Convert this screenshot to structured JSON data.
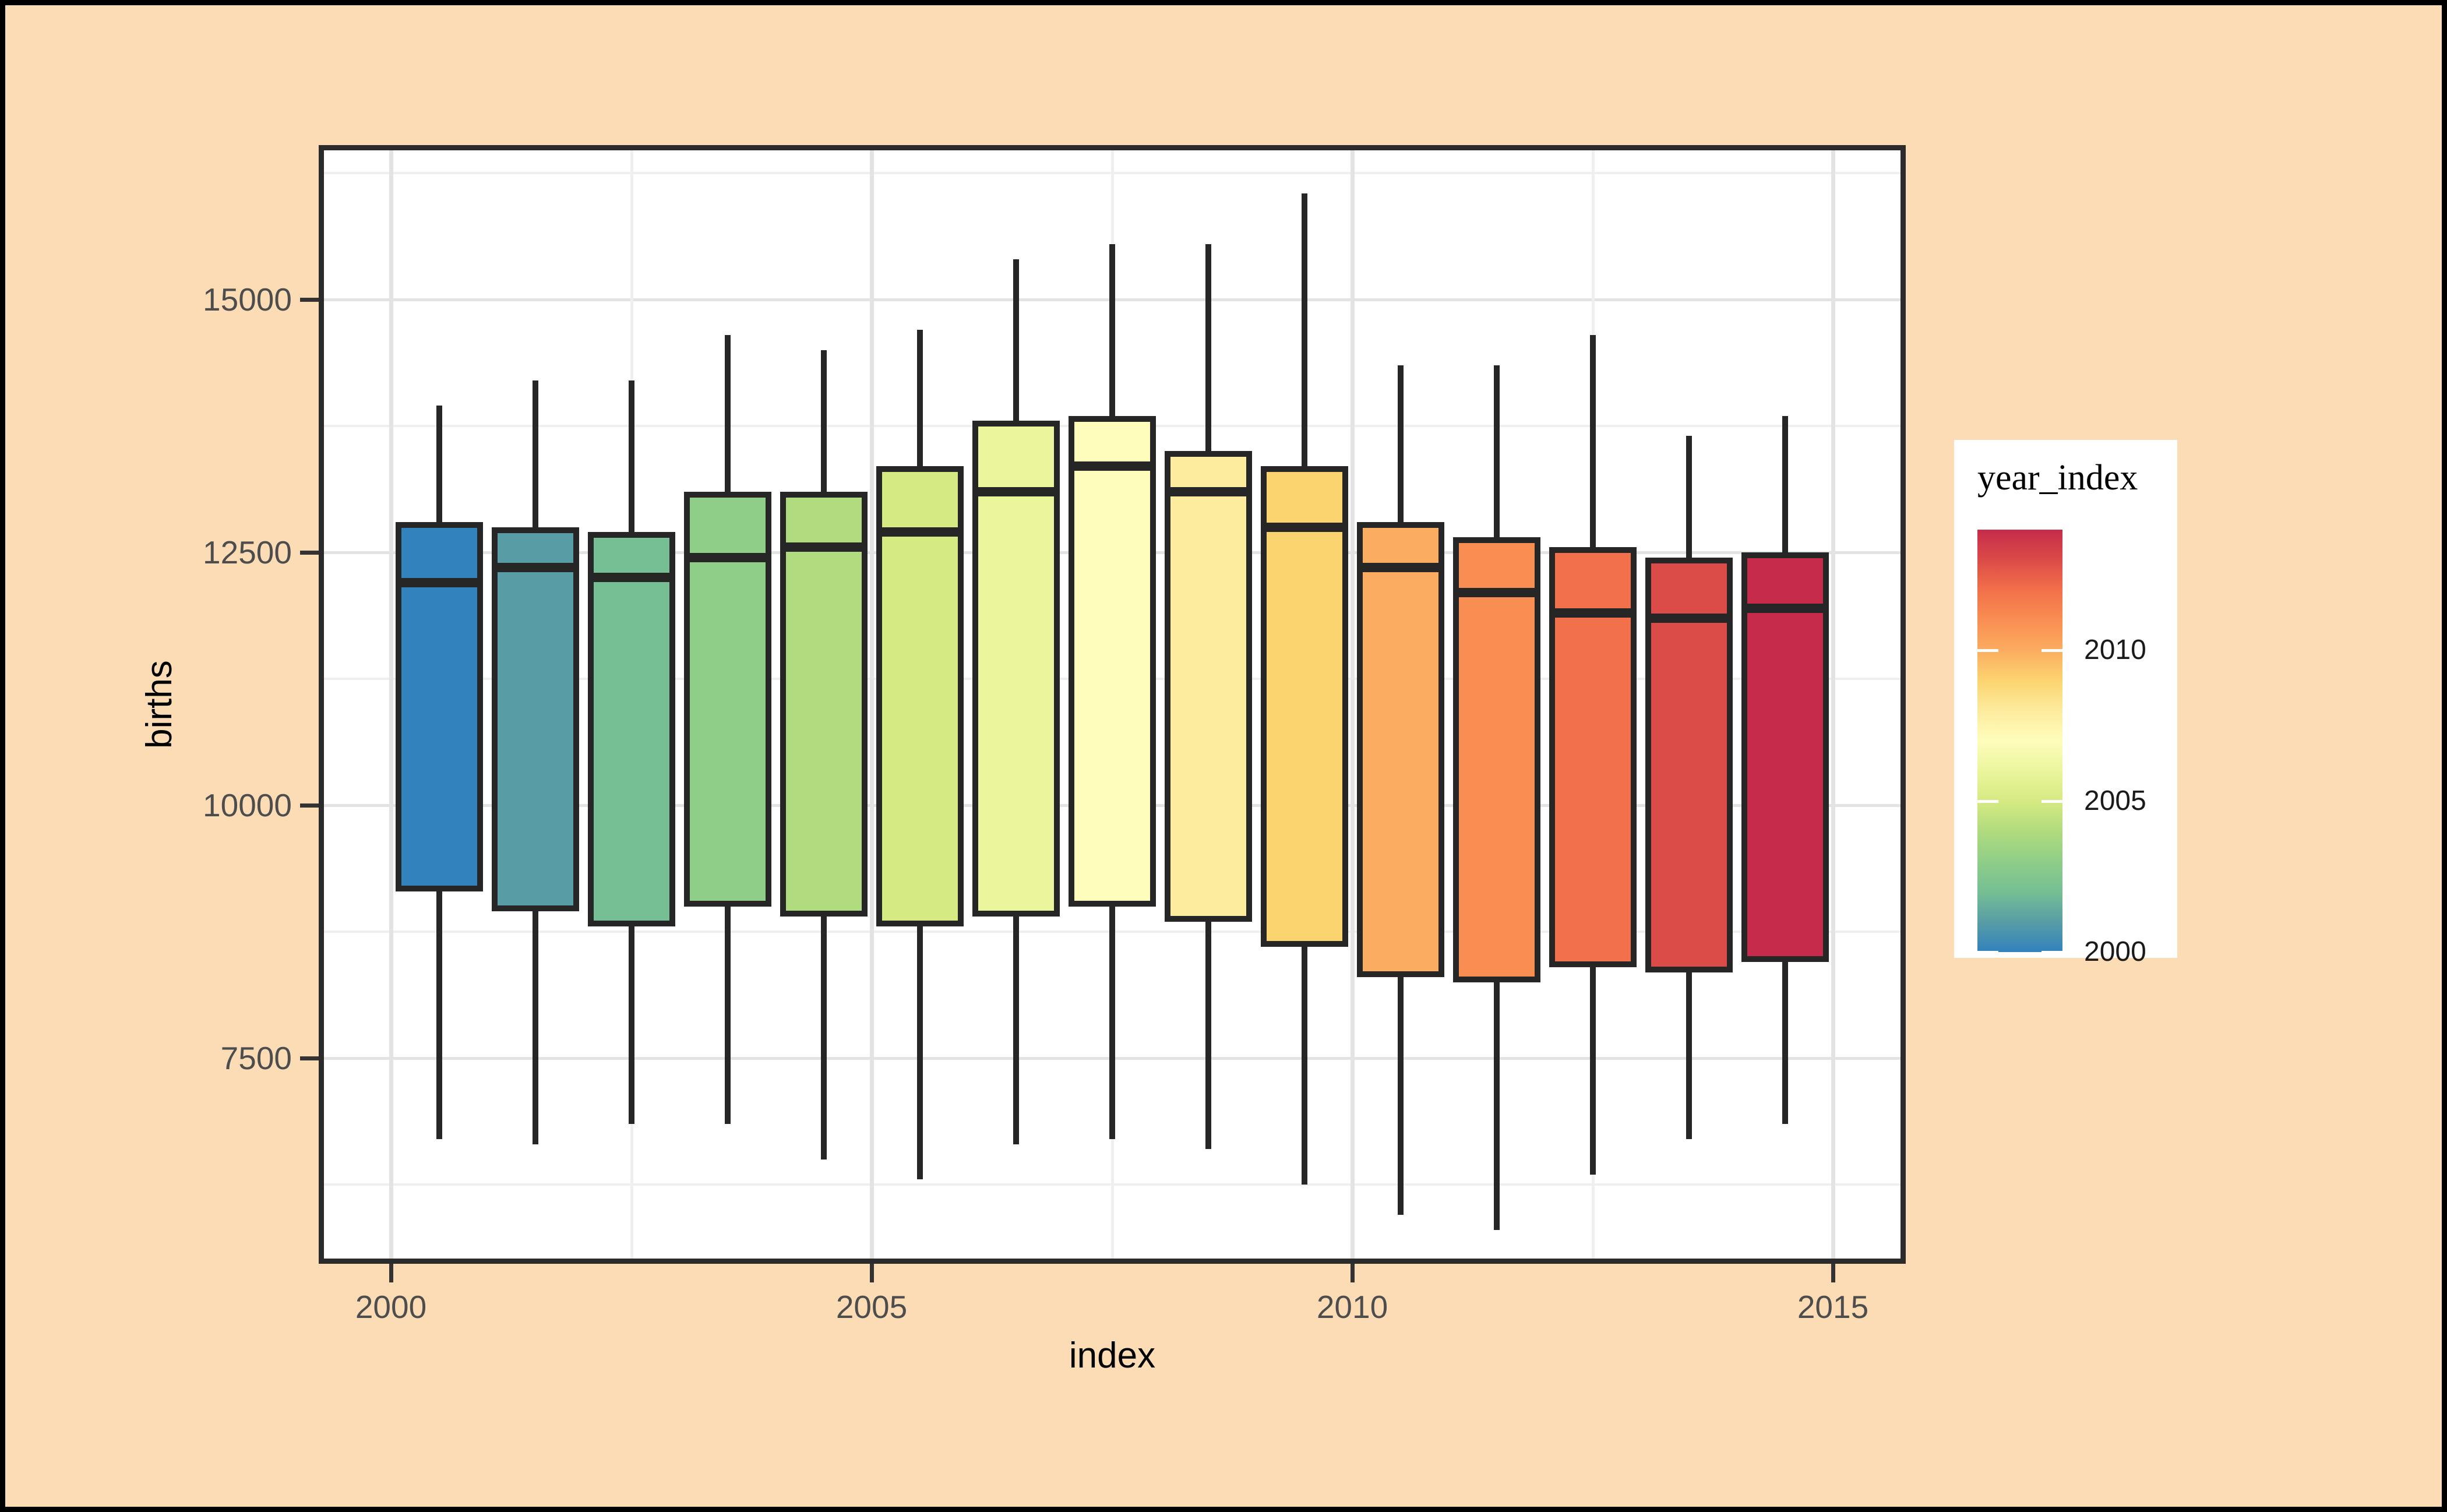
{
  "chart_data": {
    "type": "boxplot",
    "xlabel": "index",
    "ylabel": "births",
    "x_ticks": [
      {
        "label": "2000",
        "value": 2000
      },
      {
        "label": "2005",
        "value": 2005
      },
      {
        "label": "2010",
        "value": 2010
      },
      {
        "label": "2015",
        "value": 2015
      }
    ],
    "y_ticks": [
      {
        "label": "15000",
        "value": 15000
      },
      {
        "label": "12500",
        "value": 12500
      },
      {
        "label": "10000",
        "value": 10000
      },
      {
        "label": "7500",
        "value": 7500
      }
    ],
    "x_range": [
      1999.25,
      2015.75
    ],
    "y_range": [
      5467,
      16526
    ],
    "grid": {
      "major_y": [
        7500,
        10000,
        12500,
        15000
      ],
      "minor_y": [
        6250,
        8750,
        11250,
        13750,
        16250
      ],
      "major_x": [
        2000,
        2005,
        2010,
        2015
      ],
      "minor_x": [
        2002.5,
        2007.5,
        2012.5
      ]
    },
    "series": [
      {
        "year": 2000,
        "whisker_low": 6700,
        "q1": 9150,
        "median": 12200,
        "q3": 12800,
        "whisker_high": 13950,
        "color": "#3282BD"
      },
      {
        "year": 2001,
        "whisker_low": 6650,
        "q1": 8950,
        "median": 12350,
        "q3": 12750,
        "whisker_high": 14200,
        "color": "#589DA5"
      },
      {
        "year": 2002,
        "whisker_low": 6850,
        "q1": 8800,
        "median": 12250,
        "q3": 12700,
        "whisker_high": 14200,
        "color": "#76BF94"
      },
      {
        "year": 2003,
        "whisker_low": 6850,
        "q1": 9000,
        "median": 12450,
        "q3": 13100,
        "whisker_high": 14650,
        "color": "#8FCE88"
      },
      {
        "year": 2004,
        "whisker_low": 6500,
        "q1": 8900,
        "median": 12550,
        "q3": 13100,
        "whisker_high": 14500,
        "color": "#B0DB7E"
      },
      {
        "year": 2005,
        "whisker_low": 6300,
        "q1": 8800,
        "median": 12700,
        "q3": 13350,
        "whisker_high": 14700,
        "color": "#D5EA82"
      },
      {
        "year": 2006,
        "whisker_low": 6650,
        "q1": 8900,
        "median": 13100,
        "q3": 13800,
        "whisker_high": 15400,
        "color": "#EAF59C"
      },
      {
        "year": 2007,
        "whisker_low": 6700,
        "q1": 9000,
        "median": 13350,
        "q3": 13850,
        "whisker_high": 15550,
        "color": "#FEFDBB"
      },
      {
        "year": 2008,
        "whisker_low": 6600,
        "q1": 8850,
        "median": 13100,
        "q3": 13500,
        "whisker_high": 15550,
        "color": "#FDEB9E"
      },
      {
        "year": 2009,
        "whisker_low": 6250,
        "q1": 8600,
        "median": 12750,
        "q3": 13350,
        "whisker_high": 16050,
        "color": "#FCD46F"
      },
      {
        "year": 2010,
        "whisker_low": 5950,
        "q1": 8300,
        "median": 12350,
        "q3": 12800,
        "whisker_high": 14350,
        "color": "#FBAC60"
      },
      {
        "year": 2011,
        "whisker_low": 5800,
        "q1": 8250,
        "median": 12100,
        "q3": 12650,
        "whisker_high": 14350,
        "color": "#F98E52"
      },
      {
        "year": 2012,
        "whisker_low": 6350,
        "q1": 8400,
        "median": 11900,
        "q3": 12550,
        "whisker_high": 14650,
        "color": "#F2704A"
      },
      {
        "year": 2013,
        "whisker_low": 6700,
        "q1": 8350,
        "median": 11850,
        "q3": 12450,
        "whisker_high": 13650,
        "color": "#DB4B47"
      },
      {
        "year": 2014,
        "whisker_low": 6850,
        "q1": 8450,
        "median": 11950,
        "q3": 12500,
        "whisker_high": 13850,
        "color": "#C62B4B"
      }
    ],
    "legend": {
      "title": "year_index",
      "range": [
        2000,
        2014
      ],
      "ticks": [
        {
          "label": "2010",
          "value": 2010
        },
        {
          "label": "2005",
          "value": 2005
        },
        {
          "label": "2000",
          "value": 2000
        }
      ],
      "position": "right"
    },
    "style": {
      "background": "#FCDCB5",
      "frame": "#000000",
      "panel_bg": "#FFFFFF",
      "panel_border": "#2B2B2B",
      "grid_major": "#E3E3E3",
      "grid_minor": "#EFEFEF",
      "box_stroke": "#262626",
      "tick_color": "#333333",
      "tick_label_color": "#4D4D4D",
      "title_color": "#000000"
    }
  }
}
